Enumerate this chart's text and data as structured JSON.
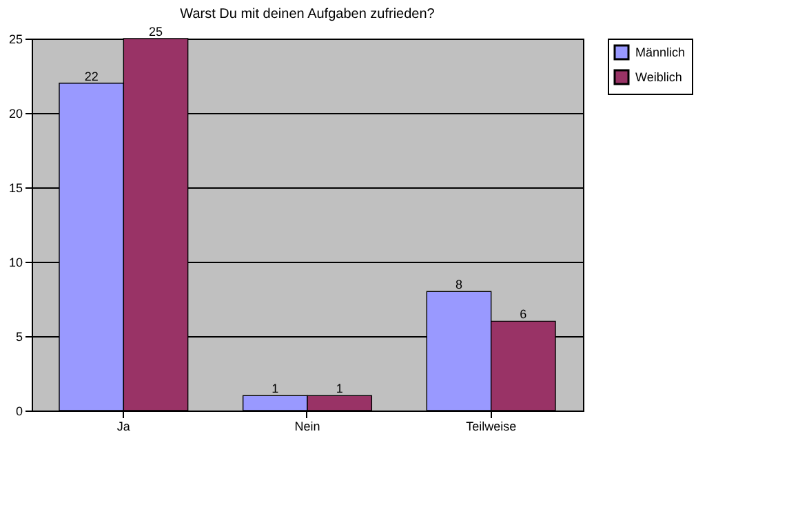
{
  "chart_data": {
    "type": "bar",
    "title": "Warst Du mit deinen Aufgaben zufrieden?",
    "categories": [
      "Ja",
      "Nein",
      "Teilweise"
    ],
    "series": [
      {
        "name": "Männlich",
        "color": "#9999ff",
        "values": [
          22,
          1,
          8
        ]
      },
      {
        "name": "Weiblich",
        "color": "#993366",
        "values": [
          25,
          1,
          6
        ]
      }
    ],
    "ylim": [
      0,
      25
    ],
    "yticks": [
      0,
      5,
      10,
      15,
      20,
      25
    ],
    "grid": "y",
    "legend": "right",
    "data_labels": true
  }
}
